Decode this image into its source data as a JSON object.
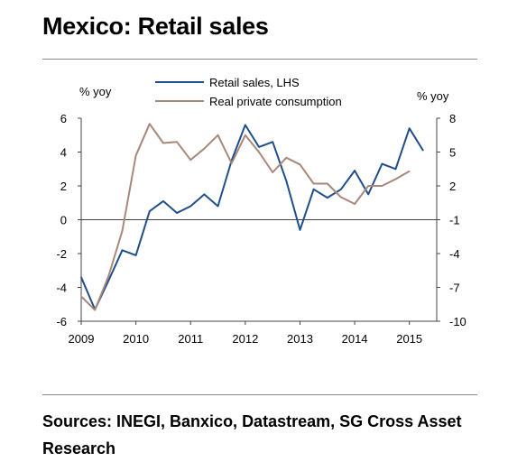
{
  "title": "Mexico: Retail sales",
  "source_text": "Sources: INEGI, Banxico, Datastream, SG Cross Asset Research",
  "chart_data": {
    "type": "line",
    "title": "Mexico: Retail sales",
    "left_axis": {
      "unit": "% yoy",
      "ticks": [
        6,
        4,
        2,
        0,
        -2,
        -4,
        -6
      ],
      "ylim": [
        -6,
        6
      ]
    },
    "right_axis": {
      "unit": "% yoy",
      "ticks": [
        8,
        5,
        2,
        -1,
        -4,
        -7,
        -10
      ],
      "ylim": [
        -10,
        8
      ]
    },
    "x_axis": {
      "ticks": [
        "2009",
        "2010",
        "2011",
        "2012",
        "2013",
        "2014",
        "2015"
      ],
      "xlim": [
        2009,
        2015.5
      ]
    },
    "legend_position": "top-center",
    "series": [
      {
        "name": "Retail sales, LHS",
        "axis": "left",
        "color": "#1f4e8a",
        "x": [
          2009.0,
          2009.25,
          2009.5,
          2009.75,
          2010.0,
          2010.25,
          2010.5,
          2010.75,
          2011.0,
          2011.25,
          2011.5,
          2011.75,
          2012.0,
          2012.25,
          2012.5,
          2012.75,
          2013.0,
          2013.25,
          2013.5,
          2013.75,
          2014.0,
          2014.25,
          2014.5,
          2014.75,
          2015.0,
          2015.25
        ],
        "values": [
          -3.4,
          -5.3,
          -3.6,
          -1.8,
          -2.1,
          0.5,
          1.1,
          0.4,
          0.8,
          1.5,
          0.8,
          3.5,
          5.6,
          4.3,
          4.6,
          2.3,
          -0.6,
          1.8,
          1.3,
          1.8,
          2.9,
          1.5,
          3.3,
          3.0,
          5.4,
          4.1
        ]
      },
      {
        "name": "Real private consumption",
        "axis": "right",
        "color": "#a8887a",
        "x": [
          2009.0,
          2009.25,
          2009.5,
          2009.75,
          2010.0,
          2010.25,
          2010.5,
          2010.75,
          2011.0,
          2011.25,
          2011.5,
          2011.75,
          2012.0,
          2012.25,
          2012.5,
          2012.75,
          2013.0,
          2013.25,
          2013.5,
          2013.75,
          2014.0,
          2014.25,
          2014.5,
          2014.75,
          2015.0
        ],
        "values": [
          -7.8,
          -9.0,
          -6.0,
          -2.0,
          4.7,
          7.5,
          5.8,
          5.9,
          4.3,
          5.3,
          6.5,
          4.0,
          6.5,
          5.0,
          3.2,
          4.5,
          3.9,
          2.2,
          2.2,
          1.0,
          0.4,
          2.0,
          2.0,
          2.6,
          3.3
        ]
      }
    ]
  }
}
